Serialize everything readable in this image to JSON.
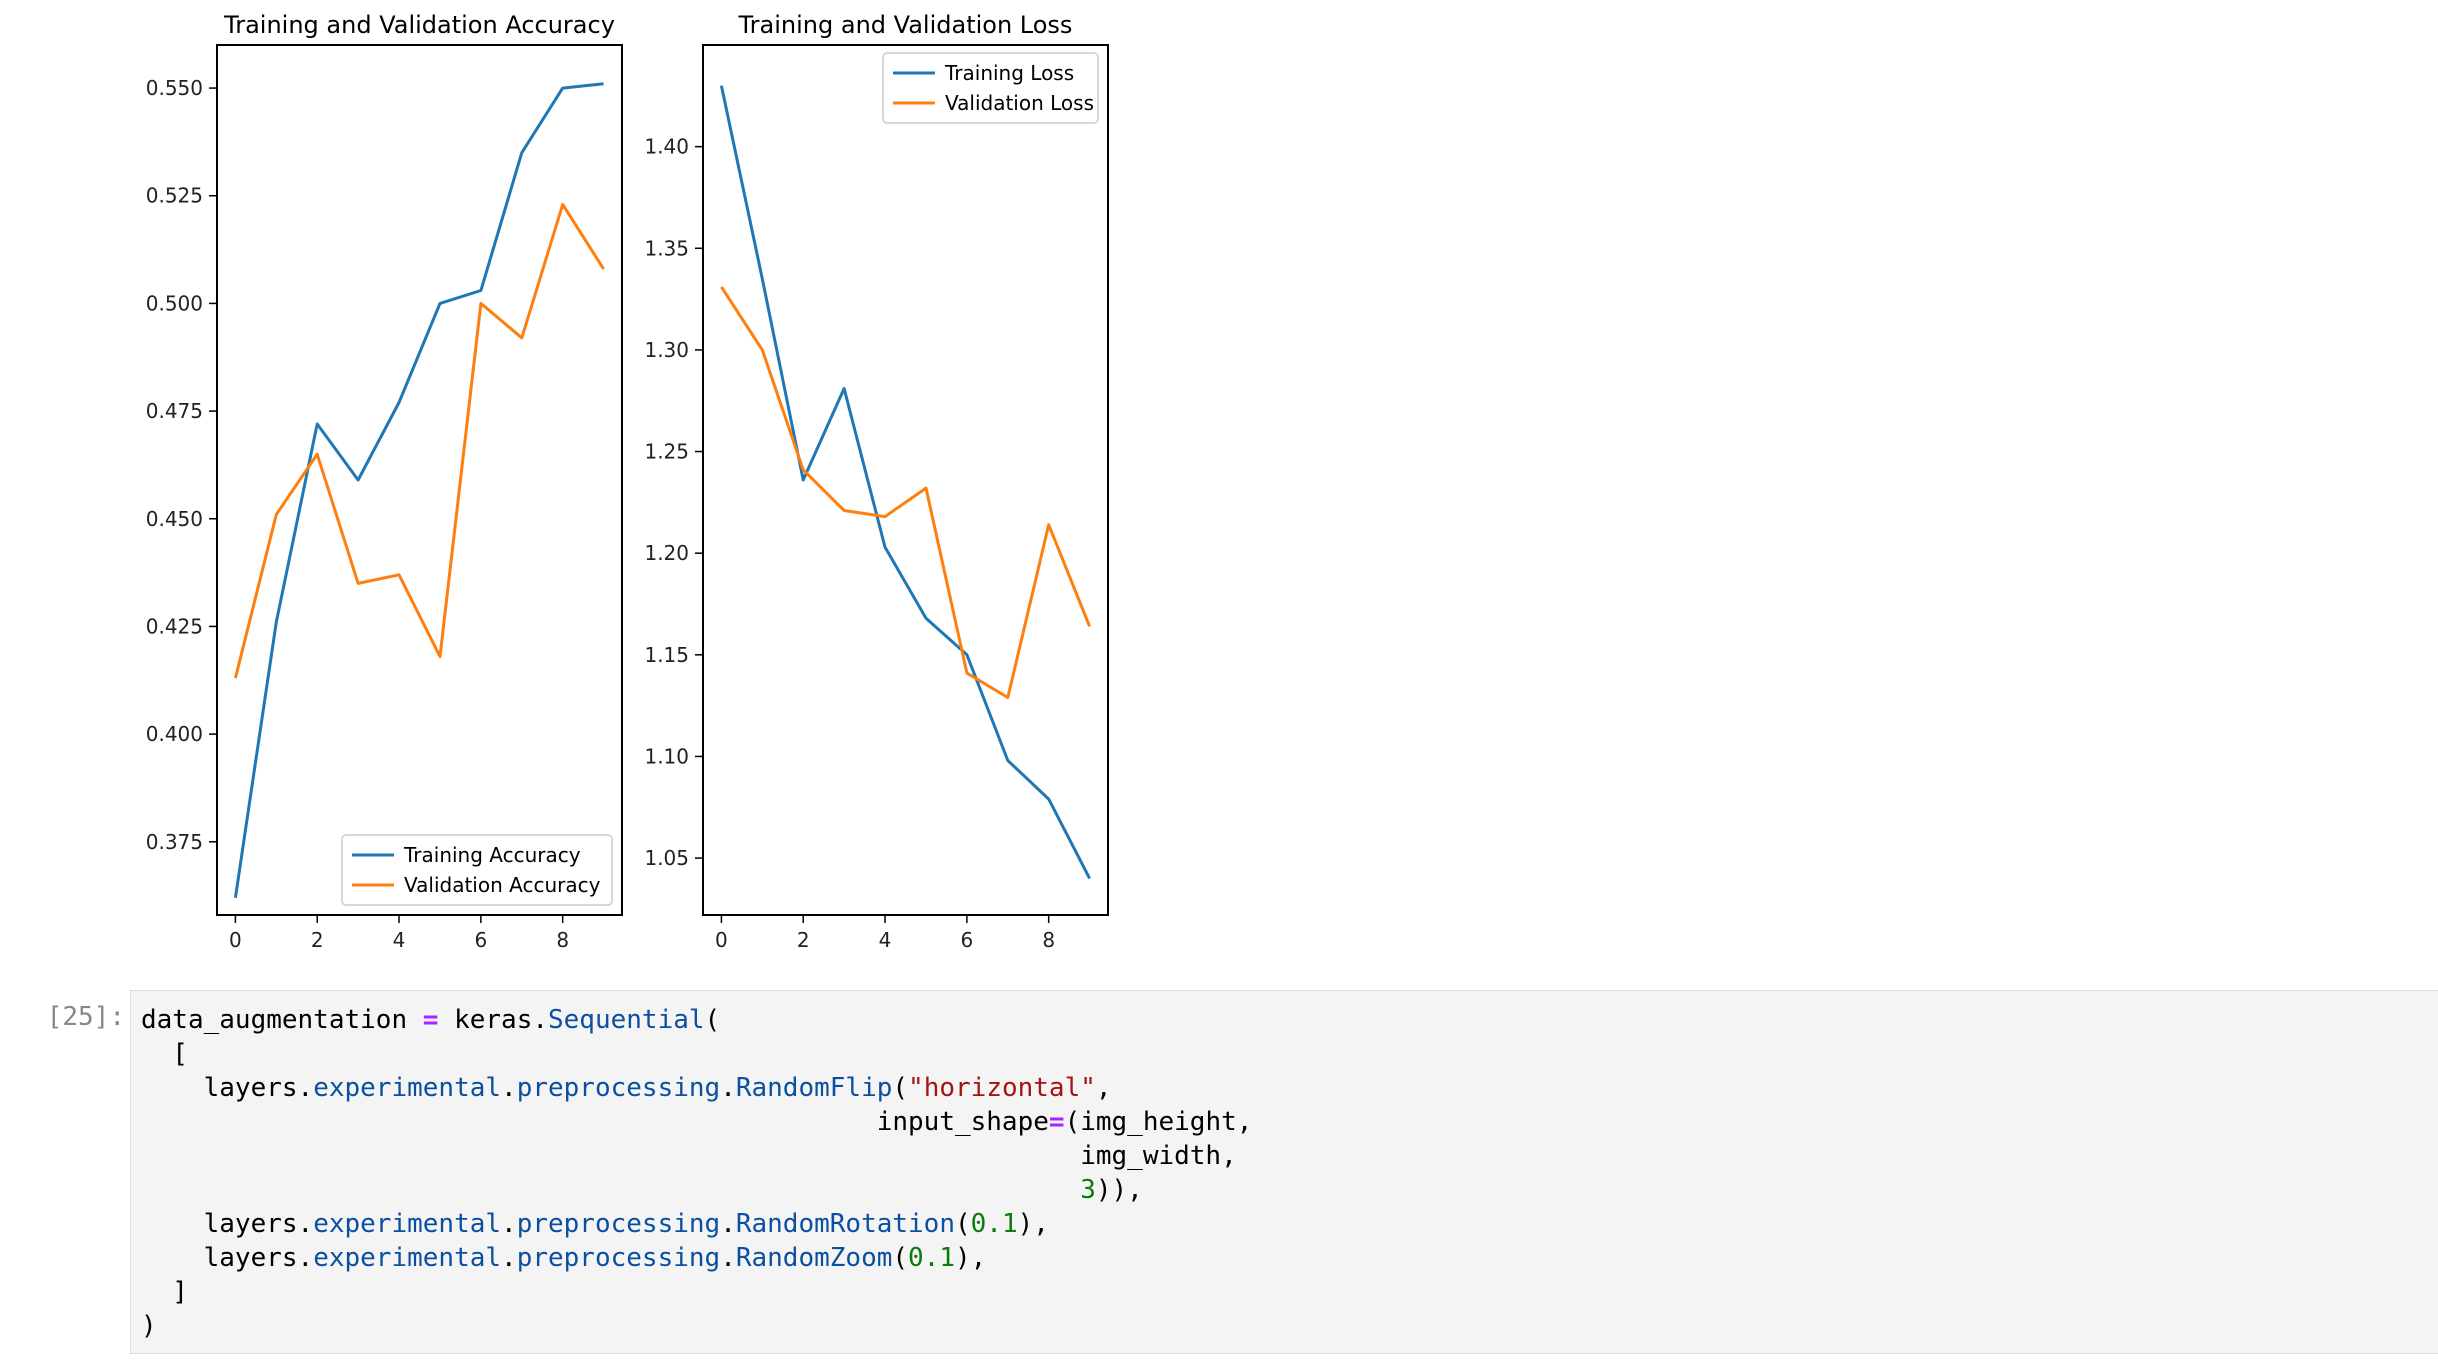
{
  "chart_data": [
    {
      "type": "line",
      "title": "Training and Validation Accuracy",
      "x": [
        0,
        1,
        2,
        3,
        4,
        5,
        6,
        7,
        8,
        9
      ],
      "xticks": [
        0,
        2,
        4,
        6,
        8
      ],
      "xlim": [
        -0.45,
        9.45
      ],
      "ylim": [
        0.358,
        0.56
      ],
      "yticks": [
        "0.375",
        "0.400",
        "0.425",
        "0.450",
        "0.475",
        "0.500",
        "0.525",
        "0.550"
      ],
      "legend_position": "lower-right",
      "series": [
        {
          "name": "Training Accuracy",
          "color": "#1f77b4",
          "values": [
            0.362,
            0.426,
            0.472,
            0.459,
            0.477,
            0.5,
            0.503,
            0.535,
            0.55,
            0.551
          ]
        },
        {
          "name": "Validation Accuracy",
          "color": "#ff7f0e",
          "values": [
            0.413,
            0.451,
            0.465,
            0.435,
            0.437,
            0.418,
            0.5,
            0.492,
            0.523,
            0.508
          ]
        }
      ]
    },
    {
      "type": "line",
      "title": "Training and Validation Loss",
      "x": [
        0,
        1,
        2,
        3,
        4,
        5,
        6,
        7,
        8,
        9
      ],
      "xticks": [
        0,
        2,
        4,
        6,
        8
      ],
      "xlim": [
        -0.45,
        9.45
      ],
      "ylim": [
        1.022,
        1.45
      ],
      "yticks": [
        "1.05",
        "1.10",
        "1.15",
        "1.20",
        "1.25",
        "1.30",
        "1.35",
        "1.40"
      ],
      "legend_position": "upper-right",
      "series": [
        {
          "name": "Training Loss",
          "color": "#1f77b4",
          "values": [
            1.43,
            1.335,
            1.236,
            1.281,
            1.203,
            1.168,
            1.15,
            1.098,
            1.079,
            1.04
          ]
        },
        {
          "name": "Validation Loss",
          "color": "#ff7f0e",
          "values": [
            1.331,
            1.3,
            1.241,
            1.221,
            1.218,
            1.232,
            1.141,
            1.129,
            1.214,
            1.164
          ]
        }
      ]
    }
  ],
  "cell": {
    "prompt": "[25]:",
    "code_lines": [
      [
        {
          "t": "data_augmentation "
        },
        {
          "t": "=",
          "c": "op"
        },
        {
          "t": " keras."
        },
        {
          "t": "Sequential",
          "c": "kw"
        },
        {
          "t": "("
        }
      ],
      [
        {
          "t": "  ["
        }
      ],
      [
        {
          "t": "    layers."
        },
        {
          "t": "experimental",
          "c": "kw"
        },
        {
          "t": "."
        },
        {
          "t": "preprocessing",
          "c": "kw"
        },
        {
          "t": "."
        },
        {
          "t": "RandomFlip",
          "c": "kw"
        },
        {
          "t": "("
        },
        {
          "t": "\"horizontal\"",
          "c": "str"
        },
        {
          "t": ","
        }
      ],
      [
        {
          "t": "                                               input_shape"
        },
        {
          "t": "=",
          "c": "op"
        },
        {
          "t": "(img_height,"
        }
      ],
      [
        {
          "t": "                                                            img_width,"
        }
      ],
      [
        {
          "t": "                                                            "
        },
        {
          "t": "3",
          "c": "num"
        },
        {
          "t": ")),"
        }
      ],
      [
        {
          "t": "    layers."
        },
        {
          "t": "experimental",
          "c": "kw"
        },
        {
          "t": "."
        },
        {
          "t": "preprocessing",
          "c": "kw"
        },
        {
          "t": "."
        },
        {
          "t": "RandomRotation",
          "c": "kw"
        },
        {
          "t": "("
        },
        {
          "t": "0.1",
          "c": "num"
        },
        {
          "t": "),"
        }
      ],
      [
        {
          "t": "    layers."
        },
        {
          "t": "experimental",
          "c": "kw"
        },
        {
          "t": "."
        },
        {
          "t": "preprocessing",
          "c": "kw"
        },
        {
          "t": "."
        },
        {
          "t": "RandomZoom",
          "c": "kw"
        },
        {
          "t": "("
        },
        {
          "t": "0.1",
          "c": "num"
        },
        {
          "t": "),"
        }
      ],
      [
        {
          "t": "  ]"
        }
      ],
      [
        {
          "t": ")"
        }
      ]
    ]
  }
}
